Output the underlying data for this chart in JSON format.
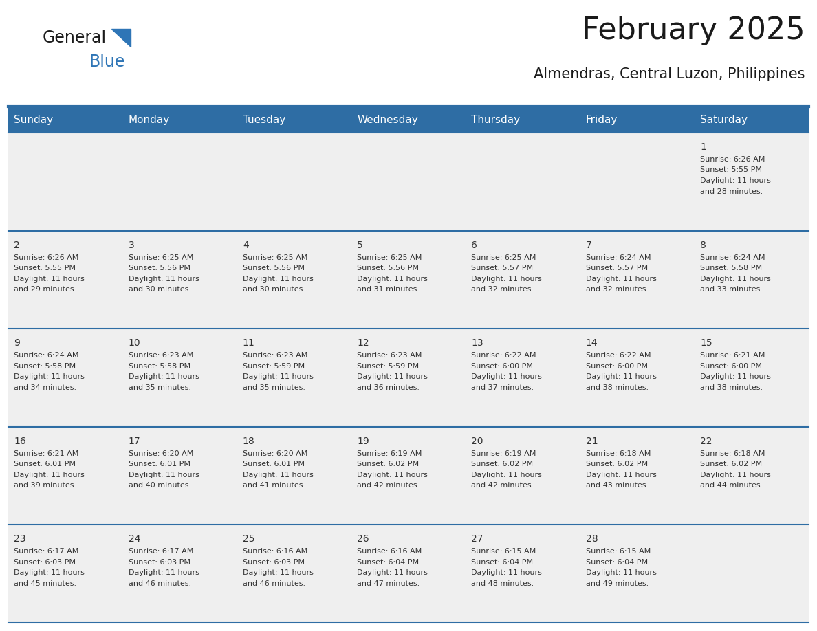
{
  "title": "February 2025",
  "subtitle": "Almendras, Central Luzon, Philippines",
  "header_bg": "#2E6DA4",
  "header_text": "#FFFFFF",
  "cell_bg_light": "#EFEFEF",
  "border_color": "#2E6DA4",
  "day_headers": [
    "Sunday",
    "Monday",
    "Tuesday",
    "Wednesday",
    "Thursday",
    "Friday",
    "Saturday"
  ],
  "title_color": "#1a1a1a",
  "subtitle_color": "#1a1a1a",
  "logo_general_color": "#1a1a1a",
  "logo_blue_color": "#2E75B6",
  "days": [
    {
      "day": 1,
      "col": 6,
      "row": 0,
      "sunrise": "6:26 AM",
      "sunset": "5:55 PM",
      "daylight": "11 hours and 28 minutes."
    },
    {
      "day": 2,
      "col": 0,
      "row": 1,
      "sunrise": "6:26 AM",
      "sunset": "5:55 PM",
      "daylight": "11 hours and 29 minutes."
    },
    {
      "day": 3,
      "col": 1,
      "row": 1,
      "sunrise": "6:25 AM",
      "sunset": "5:56 PM",
      "daylight": "11 hours and 30 minutes."
    },
    {
      "day": 4,
      "col": 2,
      "row": 1,
      "sunrise": "6:25 AM",
      "sunset": "5:56 PM",
      "daylight": "11 hours and 30 minutes."
    },
    {
      "day": 5,
      "col": 3,
      "row": 1,
      "sunrise": "6:25 AM",
      "sunset": "5:56 PM",
      "daylight": "11 hours and 31 minutes."
    },
    {
      "day": 6,
      "col": 4,
      "row": 1,
      "sunrise": "6:25 AM",
      "sunset": "5:57 PM",
      "daylight": "11 hours and 32 minutes."
    },
    {
      "day": 7,
      "col": 5,
      "row": 1,
      "sunrise": "6:24 AM",
      "sunset": "5:57 PM",
      "daylight": "11 hours and 32 minutes."
    },
    {
      "day": 8,
      "col": 6,
      "row": 1,
      "sunrise": "6:24 AM",
      "sunset": "5:58 PM",
      "daylight": "11 hours and 33 minutes."
    },
    {
      "day": 9,
      "col": 0,
      "row": 2,
      "sunrise": "6:24 AM",
      "sunset": "5:58 PM",
      "daylight": "11 hours and 34 minutes."
    },
    {
      "day": 10,
      "col": 1,
      "row": 2,
      "sunrise": "6:23 AM",
      "sunset": "5:58 PM",
      "daylight": "11 hours and 35 minutes."
    },
    {
      "day": 11,
      "col": 2,
      "row": 2,
      "sunrise": "6:23 AM",
      "sunset": "5:59 PM",
      "daylight": "11 hours and 35 minutes."
    },
    {
      "day": 12,
      "col": 3,
      "row": 2,
      "sunrise": "6:23 AM",
      "sunset": "5:59 PM",
      "daylight": "11 hours and 36 minutes."
    },
    {
      "day": 13,
      "col": 4,
      "row": 2,
      "sunrise": "6:22 AM",
      "sunset": "6:00 PM",
      "daylight": "11 hours and 37 minutes."
    },
    {
      "day": 14,
      "col": 5,
      "row": 2,
      "sunrise": "6:22 AM",
      "sunset": "6:00 PM",
      "daylight": "11 hours and 38 minutes."
    },
    {
      "day": 15,
      "col": 6,
      "row": 2,
      "sunrise": "6:21 AM",
      "sunset": "6:00 PM",
      "daylight": "11 hours and 38 minutes."
    },
    {
      "day": 16,
      "col": 0,
      "row": 3,
      "sunrise": "6:21 AM",
      "sunset": "6:01 PM",
      "daylight": "11 hours and 39 minutes."
    },
    {
      "day": 17,
      "col": 1,
      "row": 3,
      "sunrise": "6:20 AM",
      "sunset": "6:01 PM",
      "daylight": "11 hours and 40 minutes."
    },
    {
      "day": 18,
      "col": 2,
      "row": 3,
      "sunrise": "6:20 AM",
      "sunset": "6:01 PM",
      "daylight": "11 hours and 41 minutes."
    },
    {
      "day": 19,
      "col": 3,
      "row": 3,
      "sunrise": "6:19 AM",
      "sunset": "6:02 PM",
      "daylight": "11 hours and 42 minutes."
    },
    {
      "day": 20,
      "col": 4,
      "row": 3,
      "sunrise": "6:19 AM",
      "sunset": "6:02 PM",
      "daylight": "11 hours and 42 minutes."
    },
    {
      "day": 21,
      "col": 5,
      "row": 3,
      "sunrise": "6:18 AM",
      "sunset": "6:02 PM",
      "daylight": "11 hours and 43 minutes."
    },
    {
      "day": 22,
      "col": 6,
      "row": 3,
      "sunrise": "6:18 AM",
      "sunset": "6:02 PM",
      "daylight": "11 hours and 44 minutes."
    },
    {
      "day": 23,
      "col": 0,
      "row": 4,
      "sunrise": "6:17 AM",
      "sunset": "6:03 PM",
      "daylight": "11 hours and 45 minutes."
    },
    {
      "day": 24,
      "col": 1,
      "row": 4,
      "sunrise": "6:17 AM",
      "sunset": "6:03 PM",
      "daylight": "11 hours and 46 minutes."
    },
    {
      "day": 25,
      "col": 2,
      "row": 4,
      "sunrise": "6:16 AM",
      "sunset": "6:03 PM",
      "daylight": "11 hours and 46 minutes."
    },
    {
      "day": 26,
      "col": 3,
      "row": 4,
      "sunrise": "6:16 AM",
      "sunset": "6:04 PM",
      "daylight": "11 hours and 47 minutes."
    },
    {
      "day": 27,
      "col": 4,
      "row": 4,
      "sunrise": "6:15 AM",
      "sunset": "6:04 PM",
      "daylight": "11 hours and 48 minutes."
    },
    {
      "day": 28,
      "col": 5,
      "row": 4,
      "sunrise": "6:15 AM",
      "sunset": "6:04 PM",
      "daylight": "11 hours and 49 minutes."
    }
  ],
  "num_rows": 5,
  "num_cols": 7,
  "cell_text_fontsize": 8.0,
  "day_num_fontsize": 10.0,
  "text_color": "#333333"
}
